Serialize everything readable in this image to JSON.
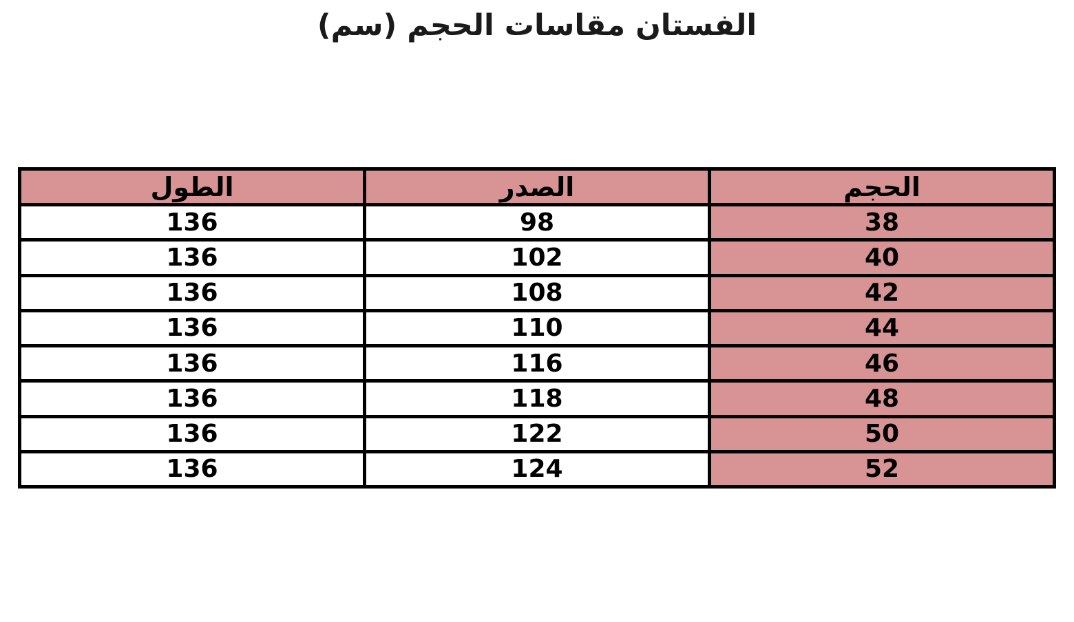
{
  "page": {
    "title": "الفستان مقاسات الحجم (سم)"
  },
  "colors": {
    "pink": "#d89495",
    "border": "#000000",
    "background": "#ffffff"
  },
  "table": {
    "direction": "rtl",
    "headers": {
      "size": "الحجم",
      "chest": "الصدر",
      "length": "الطول"
    },
    "rows": [
      {
        "size": "38",
        "chest": "98",
        "length": "136"
      },
      {
        "size": "40",
        "chest": "102",
        "length": "136"
      },
      {
        "size": "42",
        "chest": "108",
        "length": "136"
      },
      {
        "size": "44",
        "chest": "110",
        "length": "136"
      },
      {
        "size": "46",
        "chest": "116",
        "length": "136"
      },
      {
        "size": "48",
        "chest": "118",
        "length": "136"
      },
      {
        "size": "50",
        "chest": "122",
        "length": "136"
      },
      {
        "size": "52",
        "chest": "124",
        "length": "136"
      }
    ]
  },
  "chart_data": {
    "type": "table",
    "title": "الفستان مقاسات الحجم (سم)",
    "direction": "rtl",
    "columns": [
      "الحجم",
      "الصدر",
      "الطول"
    ],
    "column_meanings": [
      "size",
      "chest",
      "length"
    ],
    "rows": [
      [
        38,
        98,
        136
      ],
      [
        40,
        102,
        136
      ],
      [
        42,
        108,
        136
      ],
      [
        44,
        110,
        136
      ],
      [
        46,
        116,
        136
      ],
      [
        48,
        118,
        136
      ],
      [
        50,
        122,
        136
      ],
      [
        52,
        124,
        136
      ]
    ],
    "layout_hints": {
      "highlighted_column": "الحجم",
      "highlight_color": "#d89495",
      "header_fill": "#d89495",
      "grid": "thick-black-borders"
    }
  }
}
